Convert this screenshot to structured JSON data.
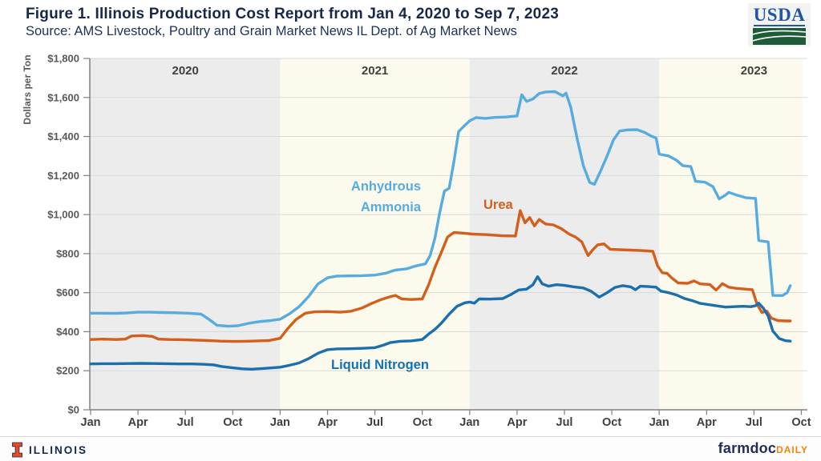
{
  "header": {
    "title": "Figure 1. Illinois Production Cost Report from Jan 4, 2020 to Sep 7, 2023",
    "subtitle": "Source: AMS Livestock, Poultry and Grain Market News IL Dept. of Ag Market News",
    "usda_logo_text": "USDA"
  },
  "footer": {
    "illinois_wordmark": "ILLINOIS",
    "farmdoc": "farmdoc",
    "daily": "DAILY"
  },
  "chart_data": {
    "type": "line",
    "title": "Illinois Production Cost Report",
    "ylabel": "Dollars per Ton",
    "ylim": [
      0,
      1800
    ],
    "x_unit": "months since Jan 2020",
    "xlim_months": [
      0,
      45.3
    ],
    "grid": true,
    "grid_color": "#d9d9d9",
    "axis_color": "#808080",
    "tick_label_color": "#595959",
    "x_label_color": "#404040",
    "y_ticks": [
      {
        "v": 0,
        "label": "$0"
      },
      {
        "v": 200,
        "label": "$200"
      },
      {
        "v": 400,
        "label": "$400"
      },
      {
        "v": 600,
        "label": "$600"
      },
      {
        "v": 800,
        "label": "$800"
      },
      {
        "v": 1000,
        "label": "$1,000"
      },
      {
        "v": 1200,
        "label": "$1,200"
      },
      {
        "v": 1400,
        "label": "$1,400"
      },
      {
        "v": 1600,
        "label": "$1,600"
      },
      {
        "v": 1800,
        "label": "$1,800"
      }
    ],
    "x_ticks": [
      {
        "m": 0,
        "label": "Jan"
      },
      {
        "m": 3,
        "label": "Apr"
      },
      {
        "m": 6,
        "label": "Jul"
      },
      {
        "m": 9,
        "label": "Oct"
      },
      {
        "m": 12,
        "label": "Jan"
      },
      {
        "m": 15,
        "label": "Apr"
      },
      {
        "m": 18,
        "label": "Jul"
      },
      {
        "m": 21,
        "label": "Oct"
      },
      {
        "m": 24,
        "label": "Jan"
      },
      {
        "m": 27,
        "label": "Apr"
      },
      {
        "m": 30,
        "label": "Jul"
      },
      {
        "m": 33,
        "label": "Oct"
      },
      {
        "m": 36,
        "label": "Jan"
      },
      {
        "m": 39,
        "label": "Apr"
      },
      {
        "m": 42,
        "label": "Jul"
      },
      {
        "m": 45,
        "label": "Oct"
      }
    ],
    "year_bands": [
      {
        "label": "2020",
        "start": 0,
        "end": 12,
        "fill": "#ececec"
      },
      {
        "label": "2021",
        "start": 12,
        "end": 24,
        "fill": "#fbfaec"
      },
      {
        "label": "2022",
        "start": 24,
        "end": 36,
        "fill": "#ececec"
      },
      {
        "label": "2023",
        "start": 36,
        "end": 45.1,
        "fill": "#fbfaec"
      }
    ],
    "series": [
      {
        "name": "Anhydrous Ammonia",
        "color": "#56ace0",
        "points": [
          [
            0,
            495
          ],
          [
            0.7,
            495
          ],
          [
            1.5,
            494
          ],
          [
            2.3,
            496
          ],
          [
            3,
            500
          ],
          [
            3.8,
            500
          ],
          [
            4.6,
            498
          ],
          [
            5.4,
            497
          ],
          [
            6.2,
            495
          ],
          [
            7,
            490
          ],
          [
            7.5,
            463
          ],
          [
            8,
            433
          ],
          [
            8.7,
            428
          ],
          [
            9.3,
            430
          ],
          [
            10,
            443
          ],
          [
            10.7,
            452
          ],
          [
            11.4,
            457
          ],
          [
            12,
            464
          ],
          [
            12.6,
            492
          ],
          [
            13.2,
            528
          ],
          [
            13.8,
            580
          ],
          [
            14.4,
            645
          ],
          [
            15,
            676
          ],
          [
            15.6,
            685
          ],
          [
            16.4,
            686
          ],
          [
            17.2,
            687
          ],
          [
            18,
            690
          ],
          [
            18.7,
            700
          ],
          [
            19.3,
            716
          ],
          [
            20,
            722
          ],
          [
            20.6,
            737
          ],
          [
            21.2,
            748
          ],
          [
            21.5,
            790
          ],
          [
            21.8,
            880
          ],
          [
            22.1,
            1010
          ],
          [
            22.4,
            1120
          ],
          [
            22.7,
            1135
          ],
          [
            23,
            1270
          ],
          [
            23.3,
            1425
          ],
          [
            23.6,
            1450
          ],
          [
            24,
            1480
          ],
          [
            24.4,
            1497
          ],
          [
            25,
            1493
          ],
          [
            25.6,
            1498
          ],
          [
            26.3,
            1500
          ],
          [
            27,
            1505
          ],
          [
            27.3,
            1614
          ],
          [
            27.6,
            1580
          ],
          [
            28,
            1592
          ],
          [
            28.4,
            1620
          ],
          [
            28.8,
            1628
          ],
          [
            29.4,
            1630
          ],
          [
            29.9,
            1608
          ],
          [
            30.1,
            1622
          ],
          [
            30.4,
            1550
          ],
          [
            30.8,
            1390
          ],
          [
            31.2,
            1250
          ],
          [
            31.6,
            1165
          ],
          [
            31.9,
            1155
          ],
          [
            32.3,
            1225
          ],
          [
            32.7,
            1300
          ],
          [
            33.1,
            1382
          ],
          [
            33.5,
            1428
          ],
          [
            34,
            1434
          ],
          [
            34.6,
            1435
          ],
          [
            35.1,
            1420
          ],
          [
            35.5,
            1402
          ],
          [
            35.8,
            1393
          ],
          [
            36,
            1310
          ],
          [
            36.6,
            1300
          ],
          [
            37.1,
            1278
          ],
          [
            37.5,
            1250
          ],
          [
            38,
            1246
          ],
          [
            38.3,
            1170
          ],
          [
            38.9,
            1166
          ],
          [
            39.4,
            1143
          ],
          [
            39.8,
            1080
          ],
          [
            40.2,
            1100
          ],
          [
            40.4,
            1114
          ],
          [
            40.9,
            1100
          ],
          [
            41.5,
            1086
          ],
          [
            42.1,
            1083
          ],
          [
            42.3,
            867
          ],
          [
            42.9,
            860
          ],
          [
            43.2,
            586
          ],
          [
            43.8,
            585
          ],
          [
            44.1,
            600
          ],
          [
            44.3,
            636
          ]
        ]
      },
      {
        "name": "Urea",
        "color": "#d2601c",
        "points": [
          [
            0,
            360
          ],
          [
            0.8,
            362
          ],
          [
            1.6,
            360
          ],
          [
            2.2,
            362
          ],
          [
            2.6,
            378
          ],
          [
            3.3,
            380
          ],
          [
            3.9,
            376
          ],
          [
            4.3,
            362
          ],
          [
            5,
            360
          ],
          [
            5.8,
            359
          ],
          [
            6.6,
            357
          ],
          [
            7.4,
            355
          ],
          [
            8.2,
            352
          ],
          [
            9,
            350
          ],
          [
            9.8,
            351
          ],
          [
            10.6,
            353
          ],
          [
            11.3,
            355
          ],
          [
            12,
            366
          ],
          [
            12.5,
            418
          ],
          [
            13,
            462
          ],
          [
            13.6,
            495
          ],
          [
            14.2,
            502
          ],
          [
            15,
            503
          ],
          [
            15.8,
            500
          ],
          [
            16.5,
            505
          ],
          [
            17.2,
            522
          ],
          [
            17.8,
            545
          ],
          [
            18.4,
            565
          ],
          [
            19,
            580
          ],
          [
            19.3,
            586
          ],
          [
            19.7,
            568
          ],
          [
            20.3,
            565
          ],
          [
            21,
            568
          ],
          [
            21.4,
            640
          ],
          [
            21.8,
            730
          ],
          [
            22.2,
            805
          ],
          [
            22.6,
            885
          ],
          [
            23,
            908
          ],
          [
            23.6,
            905
          ],
          [
            24.2,
            900
          ],
          [
            25.1,
            897
          ],
          [
            26,
            892
          ],
          [
            26.9,
            890
          ],
          [
            27.2,
            1020
          ],
          [
            27.5,
            958
          ],
          [
            27.8,
            985
          ],
          [
            28.1,
            942
          ],
          [
            28.4,
            975
          ],
          [
            28.8,
            952
          ],
          [
            29.3,
            947
          ],
          [
            29.8,
            928
          ],
          [
            30.3,
            900
          ],
          [
            30.7,
            885
          ],
          [
            31.1,
            860
          ],
          [
            31.5,
            790
          ],
          [
            31.8,
            820
          ],
          [
            32.1,
            845
          ],
          [
            32.5,
            850
          ],
          [
            32.9,
            822
          ],
          [
            33.5,
            820
          ],
          [
            34.2,
            818
          ],
          [
            35,
            815
          ],
          [
            35.6,
            812
          ],
          [
            35.9,
            737
          ],
          [
            36.2,
            702
          ],
          [
            36.5,
            699
          ],
          [
            36.8,
            675
          ],
          [
            37.2,
            650
          ],
          [
            37.8,
            648
          ],
          [
            38.2,
            660
          ],
          [
            38.6,
            645
          ],
          [
            39.2,
            642
          ],
          [
            39.6,
            613
          ],
          [
            40,
            646
          ],
          [
            40.4,
            628
          ],
          [
            40.9,
            622
          ],
          [
            41.5,
            618
          ],
          [
            41.9,
            615
          ],
          [
            42.2,
            540
          ],
          [
            42.5,
            498
          ],
          [
            42.8,
            506
          ],
          [
            43.1,
            470
          ],
          [
            43.5,
            457
          ],
          [
            44,
            455
          ],
          [
            44.3,
            455
          ]
        ]
      },
      {
        "name": "Liquid Nitrogen",
        "color": "#1a6fae",
        "points": [
          [
            0,
            235
          ],
          [
            0.8,
            236
          ],
          [
            1.6,
            236
          ],
          [
            2.4,
            237
          ],
          [
            3.2,
            238
          ],
          [
            4,
            237
          ],
          [
            4.8,
            236
          ],
          [
            5.6,
            235
          ],
          [
            6.4,
            235
          ],
          [
            7.2,
            233
          ],
          [
            7.8,
            230
          ],
          [
            8.3,
            222
          ],
          [
            9,
            215
          ],
          [
            9.6,
            210
          ],
          [
            10.2,
            208
          ],
          [
            11,
            212
          ],
          [
            12,
            218
          ],
          [
            12.6,
            228
          ],
          [
            13.2,
            240
          ],
          [
            13.8,
            262
          ],
          [
            14.4,
            290
          ],
          [
            15,
            308
          ],
          [
            15.6,
            312
          ],
          [
            16.4,
            313
          ],
          [
            17.2,
            315
          ],
          [
            18,
            318
          ],
          [
            18.5,
            330
          ],
          [
            19,
            345
          ],
          [
            19.6,
            351
          ],
          [
            20.3,
            353
          ],
          [
            21,
            360
          ],
          [
            21.4,
            388
          ],
          [
            21.8,
            412
          ],
          [
            22.2,
            443
          ],
          [
            22.7,
            490
          ],
          [
            23.2,
            530
          ],
          [
            23.7,
            548
          ],
          [
            24,
            552
          ],
          [
            24.3,
            546
          ],
          [
            24.6,
            568
          ],
          [
            25.3,
            567
          ],
          [
            26.1,
            570
          ],
          [
            26.6,
            590
          ],
          [
            27.1,
            614
          ],
          [
            27.6,
            618
          ],
          [
            28,
            640
          ],
          [
            28.3,
            682
          ],
          [
            28.6,
            645
          ],
          [
            29,
            633
          ],
          [
            29.5,
            641
          ],
          [
            30,
            637
          ],
          [
            30.6,
            630
          ],
          [
            31.2,
            624
          ],
          [
            31.7,
            607
          ],
          [
            32.2,
            577
          ],
          [
            32.7,
            600
          ],
          [
            33.2,
            627
          ],
          [
            33.7,
            636
          ],
          [
            34.2,
            630
          ],
          [
            34.5,
            615
          ],
          [
            34.8,
            633
          ],
          [
            35.3,
            631
          ],
          [
            35.8,
            628
          ],
          [
            36.1,
            608
          ],
          [
            36.6,
            600
          ],
          [
            37.1,
            588
          ],
          [
            37.6,
            570
          ],
          [
            38.1,
            559
          ],
          [
            38.6,
            545
          ],
          [
            39.2,
            538
          ],
          [
            39.7,
            532
          ],
          [
            40.2,
            526
          ],
          [
            40.7,
            528
          ],
          [
            41.3,
            530
          ],
          [
            41.8,
            528
          ],
          [
            42.1,
            533
          ],
          [
            42.3,
            546
          ],
          [
            42.6,
            520
          ],
          [
            42.9,
            480
          ],
          [
            43.2,
            403
          ],
          [
            43.6,
            365
          ],
          [
            44,
            354
          ],
          [
            44.3,
            352
          ]
        ]
      }
    ],
    "annotations": [
      {
        "lines": [
          "Anhydrous",
          "Ammonia"
        ],
        "x": 525,
        "y": 238,
        "align": "end",
        "color": "#56ace0"
      },
      {
        "lines": [
          "Urea"
        ],
        "x": 603,
        "y": 261,
        "align": "start",
        "color": "#d2601c"
      },
      {
        "lines": [
          "Liquid Nitrogen"
        ],
        "x": 413,
        "y": 461,
        "align": "start",
        "color": "#1272b4"
      }
    ],
    "legend_position": "inline-labels"
  }
}
